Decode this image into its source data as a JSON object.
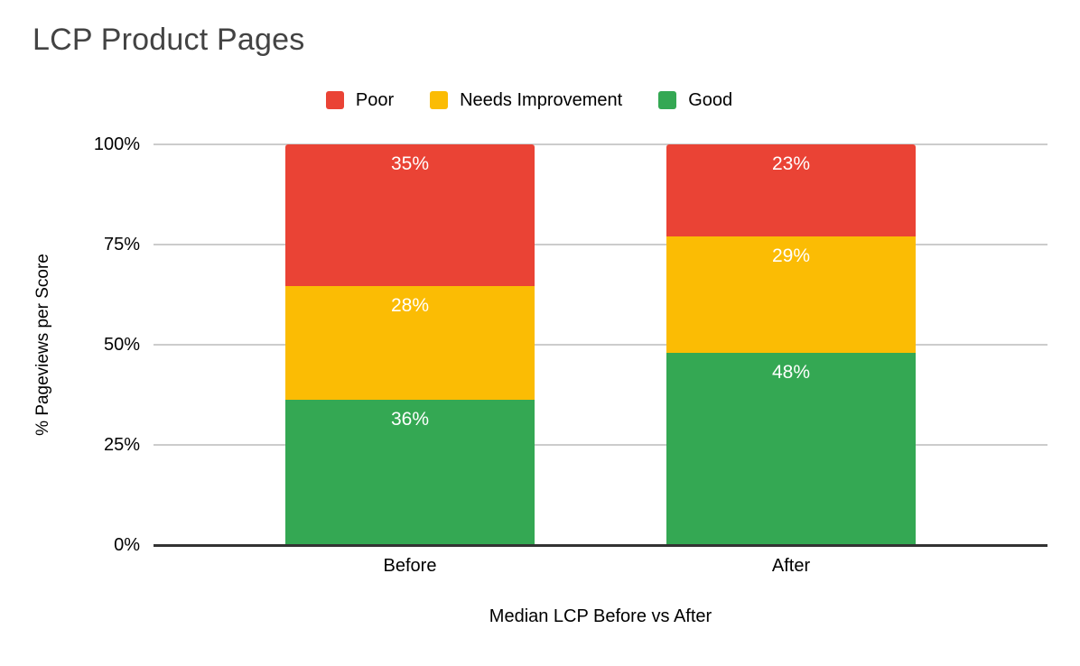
{
  "chart_data": {
    "type": "bar",
    "variant": "stacked-100-percent",
    "title": "LCP Product Pages",
    "categories": [
      "Before",
      "After"
    ],
    "series": [
      {
        "name": "Poor",
        "color": "#EA4335",
        "values": [
          35,
          23
        ]
      },
      {
        "name": "Needs Improvement",
        "color": "#FBBC04",
        "values": [
          28,
          29
        ]
      },
      {
        "name": "Good",
        "color": "#34A853",
        "values": [
          36,
          48
        ]
      }
    ],
    "data_label_suffix": "%",
    "xlabel": "Median LCP Before vs After",
    "ylabel": "% Pageviews per Score",
    "yticks": [
      "100%",
      "75%",
      "50%",
      "25%",
      "0%"
    ],
    "ylim": [
      0,
      100
    ],
    "grid": true,
    "legend_position": "top",
    "colors": {
      "title_text": "#434343",
      "axis_text": "#000000",
      "gridline": "#cccccc",
      "axis_line": "#333333",
      "data_label_text": "#ffffff",
      "background": "#ffffff"
    }
  }
}
